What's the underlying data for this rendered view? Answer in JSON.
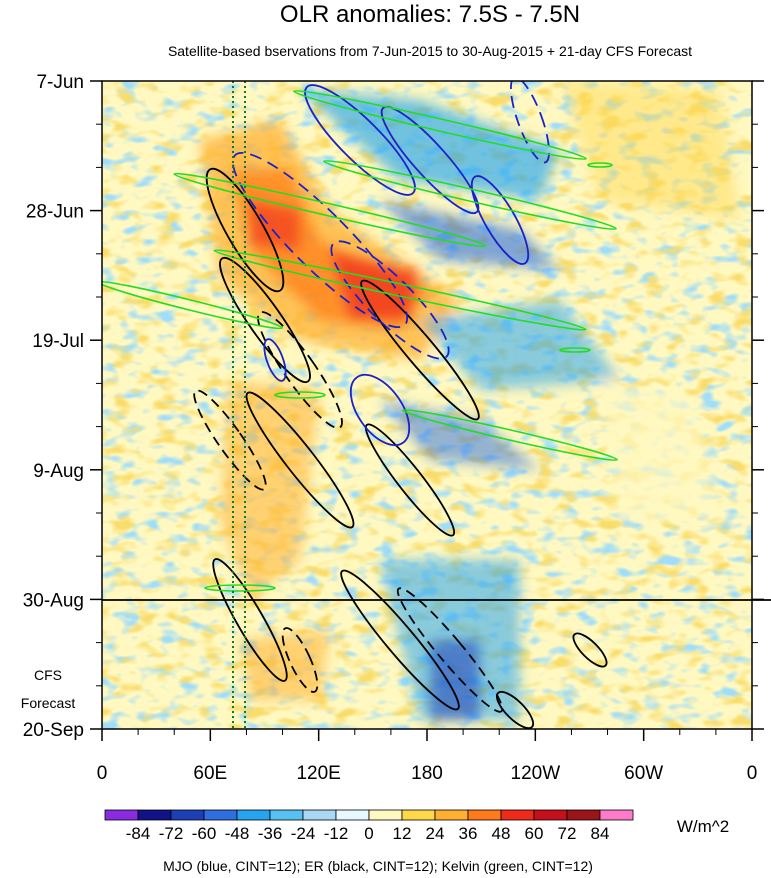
{
  "chart_data": {
    "type": "heatmap",
    "title": "OLR anomalies: 7.5S - 7.5N",
    "subtitle": "Satellite-based bservations from 7-Jun-2015 to 30-Aug-2015 + 21-day CFS Forecast",
    "x_ticks": [
      "0",
      "60E",
      "120E",
      "180",
      "120W",
      "60W",
      "0"
    ],
    "y_ticks": [
      "7-Jun",
      "28-Jun",
      "19-Jul",
      "9-Aug",
      "30-Aug",
      "20-Sep"
    ],
    "forecast_label": [
      "CFS",
      "Forecast"
    ],
    "observation_end": "30-Aug",
    "colorbar": {
      "labels": [
        "-84",
        "-72",
        "-60",
        "-48",
        "-36",
        "-24",
        "-12",
        "0",
        "12",
        "24",
        "36",
        "48",
        "60",
        "72",
        "84"
      ],
      "colors": [
        "#8a2be2",
        "#11118a",
        "#1c3fb8",
        "#2e6ee0",
        "#27a4f0",
        "#56c2f2",
        "#a8d8f5",
        "#e8f8ff",
        "#fff8c0",
        "#ffd84a",
        "#ffb030",
        "#ff7a1a",
        "#ee2a1a",
        "#c4101a",
        "#9a1418",
        "#ff7ac8"
      ],
      "units": "W/m^2"
    },
    "footer": "MJO (blue, CINT=12); ER (black, CINT=12); Kelvin (green, CINT=12)",
    "contour_colors": {
      "mjo": "#1a22c8",
      "er": "#000000",
      "kelvin": "#22dd22",
      "reference_lines": "#117a2a"
    }
  }
}
